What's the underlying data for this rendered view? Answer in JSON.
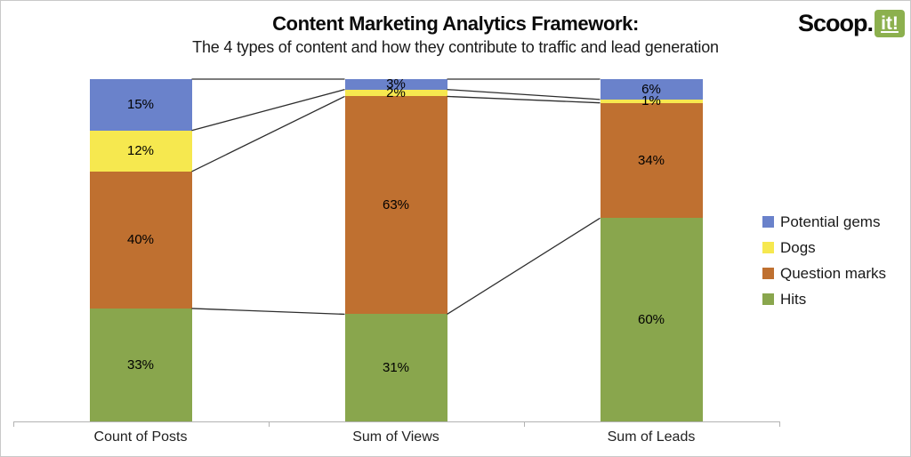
{
  "header": {
    "title": "Content Marketing Analytics Framework:",
    "subtitle": "The 4 types of content and how they contribute to traffic and lead generation"
  },
  "logo": {
    "word": "Scoop.",
    "badge": "it!",
    "badge_color": "#8CB04E"
  },
  "chart_data": {
    "type": "bar",
    "variant": "100-percent-stacked-column-with-series-lines",
    "title": "Content Marketing Analytics Framework:",
    "subtitle": "The 4 types of content and how they contribute to traffic and lead generation",
    "categories": [
      "Count of Posts",
      "Sum of Views",
      "Sum of Leads"
    ],
    "series": [
      {
        "name": "Hits",
        "color": "#89A64D",
        "values": [
          33,
          31,
          60
        ]
      },
      {
        "name": "Question marks",
        "color": "#BF7030",
        "values": [
          40,
          63,
          34
        ]
      },
      {
        "name": "Dogs",
        "color": "#F6E84F",
        "values": [
          12,
          2,
          1
        ]
      },
      {
        "name": "Potential gems",
        "color": "#6A82CB",
        "values": [
          15,
          3,
          6
        ]
      }
    ],
    "stack_order_bottom_to_top": [
      "Hits",
      "Question marks",
      "Dogs",
      "Potential gems"
    ],
    "data_labels": [
      "33%",
      "31%",
      "60%",
      "40%",
      "63%",
      "34%",
      "12%",
      "2%",
      "1%",
      "15%",
      "3%",
      "6%"
    ],
    "legend": {
      "position": "right",
      "items_top_to_bottom": [
        "Potential gems",
        "Dogs",
        "Question marks",
        "Hits"
      ]
    },
    "axis": {
      "x_labels": [
        "Count of Posts",
        "Sum of Views",
        "Sum of Leads"
      ],
      "y_axis_shown": false
    },
    "grid": false,
    "connector_lines": true,
    "connector_line_color": "#2d2d2d",
    "axis_color": "#b3b3b3",
    "ylim": [
      0,
      100
    ]
  }
}
